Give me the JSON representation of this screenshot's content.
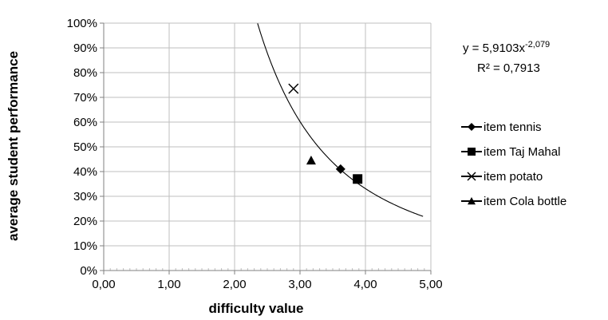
{
  "chart_data": {
    "type": "scatter",
    "xlabel": "difficulty value",
    "ylabel": "average student performance",
    "xlim": [
      0,
      5
    ],
    "ylim": [
      0,
      1
    ],
    "x_ticks": [
      "0,00",
      "1,00",
      "2,00",
      "3,00",
      "4,00",
      "5,00"
    ],
    "y_ticks": [
      "0%",
      "10%",
      "20%",
      "30%",
      "40%",
      "50%",
      "60%",
      "70%",
      "80%",
      "90%",
      "100%"
    ],
    "grid": true,
    "legend_position": "right",
    "series": [
      {
        "name": "item tennis",
        "marker": "diamond",
        "points": [
          {
            "x": 3.62,
            "y": 0.41
          }
        ]
      },
      {
        "name": "item Taj Mahal",
        "marker": "square",
        "points": [
          {
            "x": 3.88,
            "y": 0.37
          }
        ]
      },
      {
        "name": "item potato",
        "marker": "cross",
        "points": [
          {
            "x": 2.9,
            "y": 0.735
          }
        ]
      },
      {
        "name": "item Cola bottle",
        "marker": "triangle",
        "points": [
          {
            "x": 3.17,
            "y": 0.445
          }
        ]
      }
    ],
    "trendline": {
      "type": "power",
      "coefficient": 5.9103,
      "exponent": -2.079,
      "x_range": [
        2.3,
        4.88
      ],
      "equation_prefix": "y = 5,9103x",
      "equation_exponent": "-2,079",
      "r_squared_label": "R² = 0,7913"
    }
  },
  "colors": {
    "grid": "#bfbfbf",
    "axis": "#808080",
    "marker": "#000000",
    "trendline": "#000000"
  }
}
